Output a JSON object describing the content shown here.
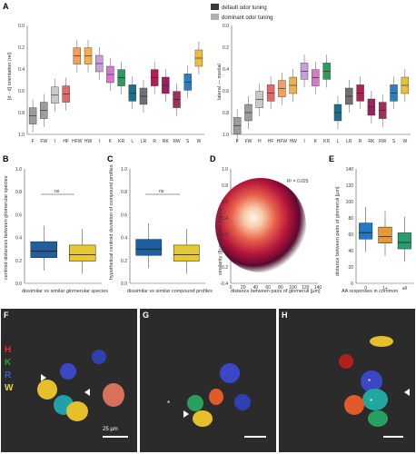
{
  "panels": {
    "A": {
      "label": "A",
      "legend": [
        {
          "text": "default odor tuning",
          "color": "#3a3a3a"
        },
        {
          "text": "dominant odor tuning",
          "color": "#9a9a9a"
        }
      ],
      "left_ylabel": "[d - d] orientation (rel)",
      "right_ylabel": "lateral — medial",
      "left_yticks": [
        "0.0",
        "0.2",
        "0.4",
        "0.6",
        "0.8",
        "1.0"
      ],
      "right_yticks": [
        "0.0",
        "0.2",
        "0.4",
        "0.6",
        "0.8",
        "1.0"
      ],
      "left_xticks": [
        "F",
        "FW",
        "I",
        "HF",
        "HFW",
        "HW",
        "I",
        "K",
        "KR",
        "L",
        "LR",
        "R",
        "RK",
        "RW",
        "S",
        "W"
      ],
      "right_xticks": [
        "F",
        "FW",
        "H",
        "HF",
        "HFW",
        "HW",
        "I",
        "K",
        "KR",
        "L",
        "LR",
        "R",
        "RK",
        "RW",
        "S",
        "W"
      ]
    },
    "B": {
      "label": "B",
      "ylabel": "centroid distances between glomerular species",
      "xlabel": "dissimilar vs similar glomerular species",
      "ns": "ns",
      "yticks": [
        "0.0",
        "0.2",
        "0.4",
        "0.6",
        "0.8",
        "1.0"
      ]
    },
    "C": {
      "label": "C",
      "ylabel": "hypothetical centroid deviation of compound profiles",
      "xlabel": "dissimilar vs similar compound profiles",
      "ns": "ns",
      "yticks": [
        "0.0",
        "0.2",
        "0.4",
        "0.6",
        "0.8",
        "1.0"
      ]
    },
    "D": {
      "label": "D",
      "ylabel": "similarity (fluorescence traces)",
      "xlabel": "distance between pairs of glomeruli [µm]",
      "annotation": "R² = 0.025",
      "yticks": [
        "-0.4",
        "-0.2",
        "0.0",
        "0.2",
        "0.4",
        "0.6",
        "0.8",
        "1.0"
      ],
      "xticks": [
        "0",
        "20",
        "40",
        "60",
        "80",
        "100",
        "120",
        "140"
      ]
    },
    "E": {
      "label": "E",
      "ylabel": "distance between pairs of glomeruli [µm]",
      "xlabel": "AA responses in common",
      "yticks": [
        "0",
        "20",
        "40",
        "60",
        "80",
        "100",
        "120",
        "140"
      ],
      "xticks": [
        "0",
        "1+",
        "all"
      ]
    },
    "F": {
      "label": "F",
      "channels": [
        {
          "text": "H",
          "color": "#e0302a"
        },
        {
          "text": "K",
          "color": "#2ca02c"
        },
        {
          "text": "R",
          "color": "#3a5cd8"
        },
        {
          "text": "W",
          "color": "#e8d23a"
        }
      ],
      "scale": "25 µm"
    },
    "G": {
      "label": "G"
    },
    "H": {
      "label": "H"
    }
  },
  "chart_data": [
    {
      "type": "box",
      "panel": "A-left",
      "categories": [
        "F",
        "FW",
        "I",
        "HF",
        "HFW",
        "HW",
        "I",
        "K",
        "KR",
        "L",
        "LR",
        "R",
        "RK",
        "RW",
        "S",
        "W"
      ],
      "series": [
        {
          "values": [
            0.83,
            0.78,
            0.64,
            0.63,
            0.28,
            0.28,
            0.35,
            0.45,
            0.48,
            0.62,
            0.65,
            0.48,
            0.55,
            0.68,
            0.52,
            0.3
          ]
        }
      ]
    },
    {
      "type": "box",
      "panel": "A-right",
      "categories": [
        "F",
        "FW",
        "H",
        "HF",
        "HFW",
        "HW",
        "I",
        "K",
        "KR",
        "L",
        "LR",
        "R",
        "RK",
        "RW",
        "S",
        "W"
      ],
      "series": [
        {
          "values": [
            0.92,
            0.8,
            0.68,
            0.62,
            0.58,
            0.55,
            0.42,
            0.48,
            0.42,
            0.8,
            0.65,
            0.62,
            0.75,
            0.78,
            0.62,
            0.55
          ]
        }
      ]
    },
    {
      "type": "box",
      "panel": "B",
      "categories": [
        "dissimilar",
        "similar"
      ],
      "values": [
        0.28,
        0.25
      ],
      "ylim": [
        0,
        1
      ]
    },
    {
      "type": "box",
      "panel": "C",
      "categories": [
        "dissimilar",
        "similar"
      ],
      "values": [
        0.3,
        0.25
      ],
      "ylim": [
        0,
        1
      ]
    },
    {
      "type": "heatmap",
      "panel": "D",
      "xlim": [
        0,
        140
      ],
      "ylim": [
        -0.4,
        1.0
      ],
      "annotation": "R² = 0.025"
    },
    {
      "type": "box",
      "panel": "E",
      "categories": [
        "0",
        "1+",
        "all"
      ],
      "values": [
        62,
        57,
        50
      ],
      "ylim": [
        0,
        140
      ]
    }
  ]
}
